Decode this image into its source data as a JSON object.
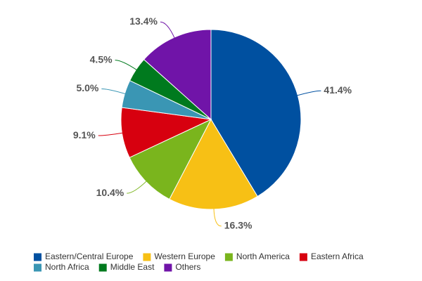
{
  "chart_data": {
    "type": "pie",
    "categories": [
      "Eastern/Central Europe",
      "Western Europe",
      "North America",
      "Eastern Africa",
      "North Africa",
      "Middle East",
      "Others"
    ],
    "values": [
      41.4,
      16.3,
      10.4,
      9.1,
      5.0,
      4.5,
      13.4
    ],
    "value_labels": [
      "41.4%",
      "16.3%",
      "10.4%",
      "9.1%",
      "5.0%",
      "4.5%",
      "13.4%"
    ],
    "colors": [
      "#0050a0",
      "#f7c015",
      "#7ab51d",
      "#d7000f",
      "#3a96b4",
      "#007a1e",
      "#7014a8"
    ],
    "legend": "bottom"
  }
}
